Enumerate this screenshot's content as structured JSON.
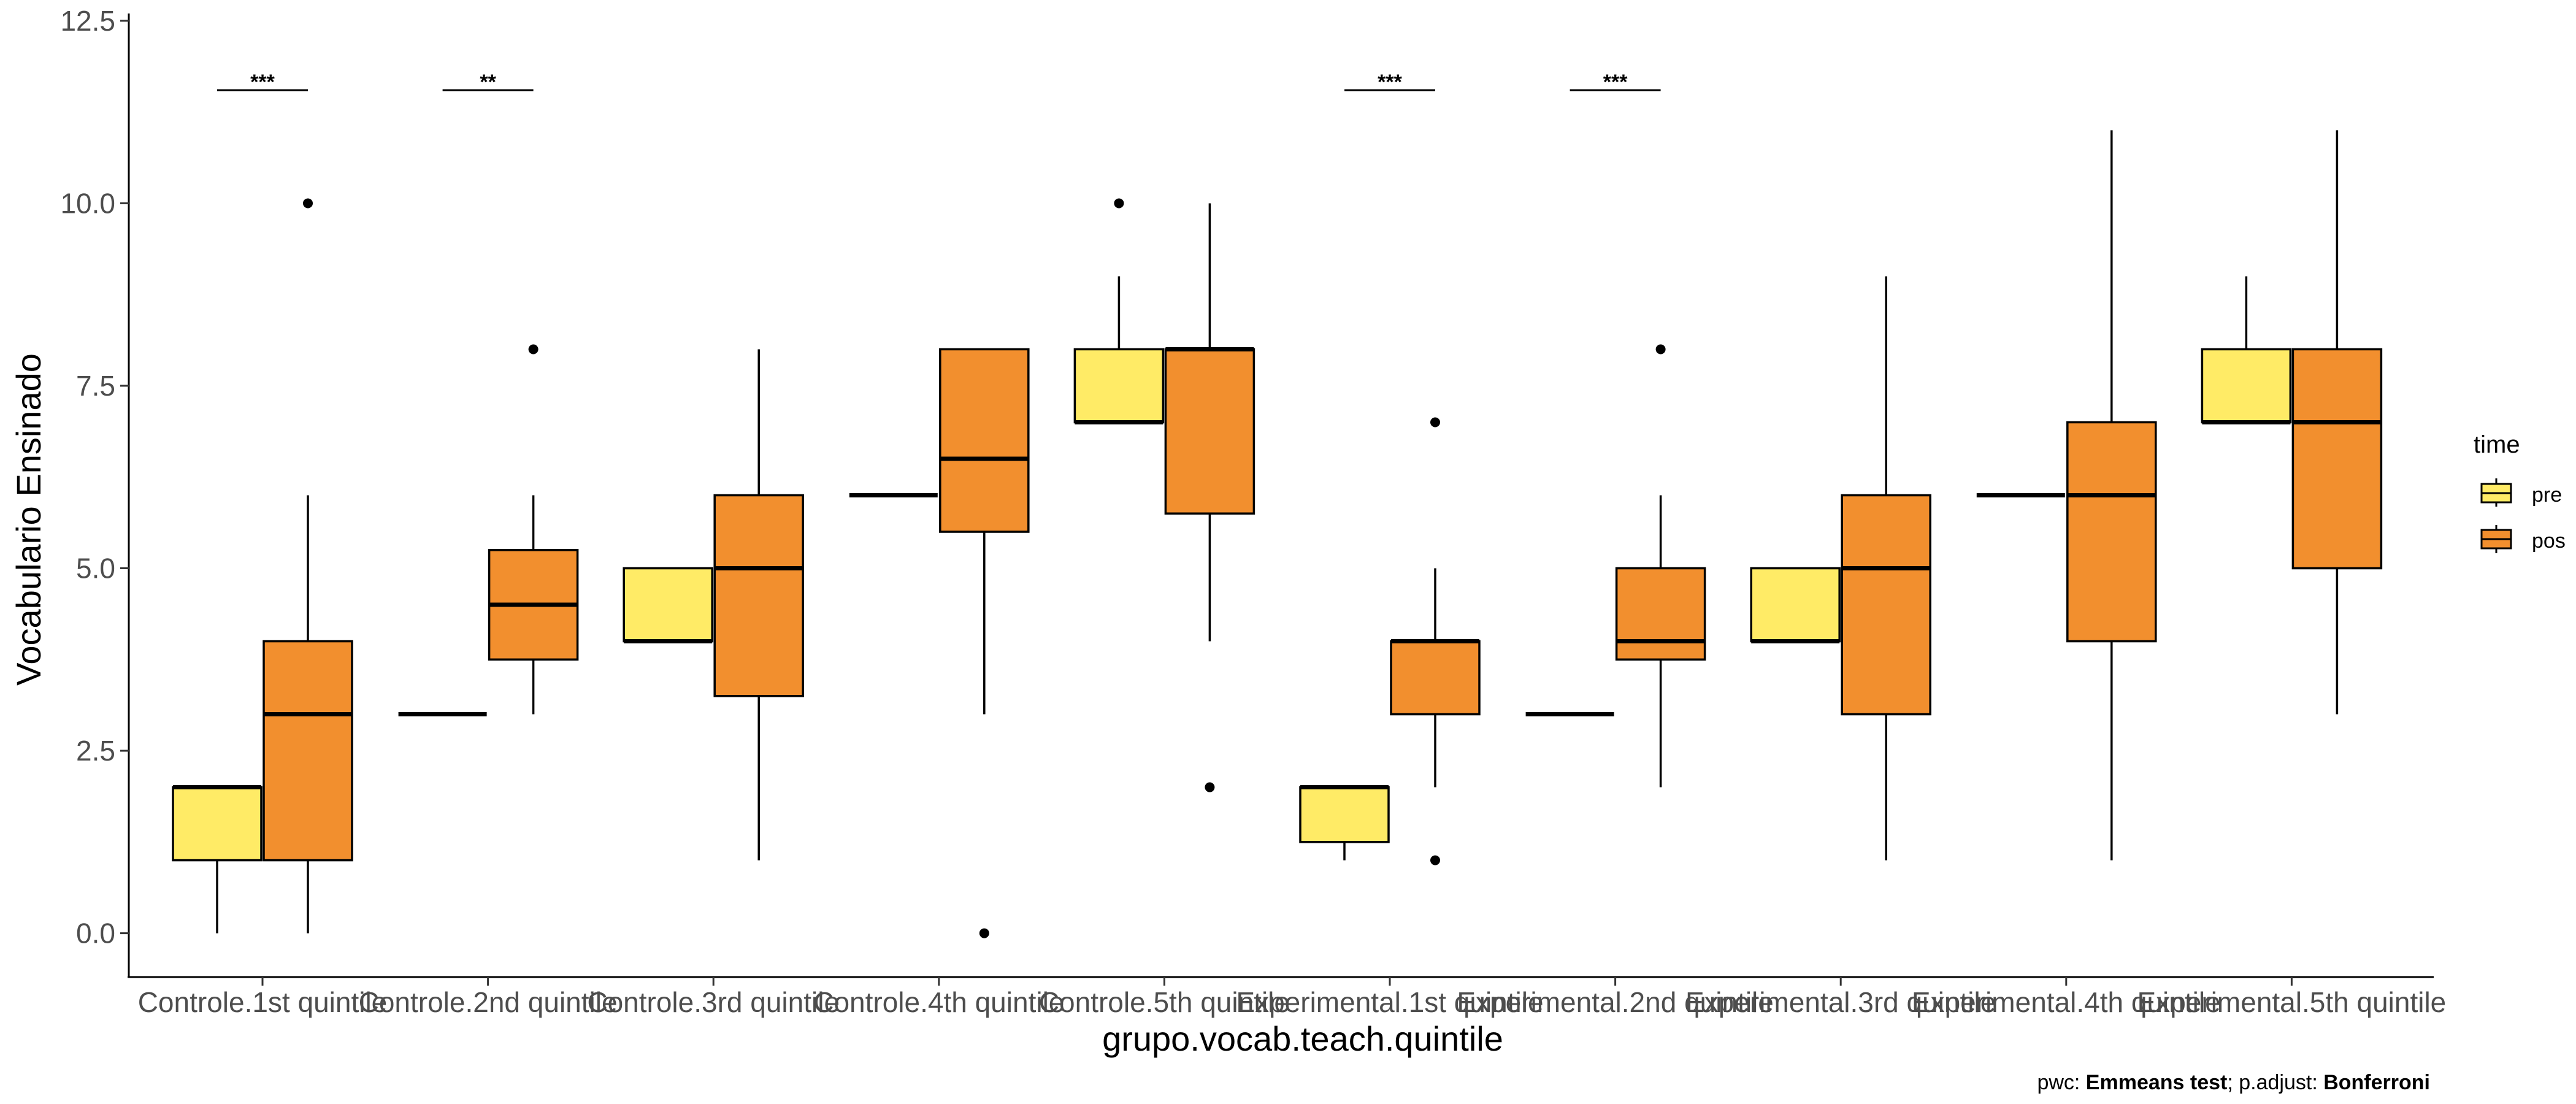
{
  "chart_data": {
    "type": "boxplot",
    "xlabel": "grupo.vocab.teach.quintile",
    "ylabel": "Vocabulario Ensinado",
    "ylim": [
      -0.6,
      12.6
    ],
    "yticks": [
      0.0,
      2.5,
      5.0,
      7.5,
      10.0,
      12.5
    ],
    "ytick_labels": [
      "0.0",
      "2.5",
      "5.0",
      "7.5",
      "10.0",
      "12.5"
    ],
    "grid": false,
    "categories": [
      "Controle.1st quintile",
      "Controle.2nd quintile",
      "Controle.3rd quintile",
      "Controle.4th quintile",
      "Controle.5th quintile",
      "Experimental.1st quintile",
      "Experimental.2nd quintile",
      "Experimental.3rd quintile",
      "Experimental.4th quintile",
      "Experimental.5th quintile"
    ],
    "legend": {
      "title": "time",
      "position": "right",
      "entries": [
        {
          "name": "pre",
          "color": "#FFEB66"
        },
        {
          "name": "pos",
          "color": "#F28F2E"
        }
      ]
    },
    "series": [
      {
        "name": "pre",
        "color": "#FFEB66",
        "boxes": [
          {
            "min": 0,
            "q1": 1,
            "median": 2,
            "q3": 2,
            "max": 2,
            "outliers": []
          },
          {
            "min": 3,
            "q1": 3,
            "median": 3,
            "q3": 3,
            "max": 3,
            "outliers": []
          },
          {
            "min": 4,
            "q1": 4,
            "median": 4,
            "q3": 5,
            "max": 5,
            "outliers": []
          },
          {
            "min": 6,
            "q1": 6,
            "median": 6,
            "q3": 6,
            "max": 6,
            "outliers": []
          },
          {
            "min": 7,
            "q1": 7,
            "median": 7,
            "q3": 8,
            "max": 9,
            "outliers": [
              10
            ]
          },
          {
            "min": 1,
            "q1": 1.25,
            "median": 2,
            "q3": 2,
            "max": 2,
            "outliers": []
          },
          {
            "min": 3,
            "q1": 3,
            "median": 3,
            "q3": 3,
            "max": 3,
            "outliers": []
          },
          {
            "min": 4,
            "q1": 4,
            "median": 4,
            "q3": 5,
            "max": 5,
            "outliers": []
          },
          {
            "min": 6,
            "q1": 6,
            "median": 6,
            "q3": 6,
            "max": 6,
            "outliers": []
          },
          {
            "min": 7,
            "q1": 7,
            "median": 7,
            "q3": 8,
            "max": 9,
            "outliers": []
          }
        ]
      },
      {
        "name": "pos",
        "color": "#F28F2E",
        "boxes": [
          {
            "min": 0,
            "q1": 1,
            "median": 3,
            "q3": 4,
            "max": 6,
            "outliers": [
              10
            ]
          },
          {
            "min": 3,
            "q1": 3.75,
            "median": 4.5,
            "q3": 5.25,
            "max": 6,
            "outliers": [
              8
            ]
          },
          {
            "min": 1,
            "q1": 3.25,
            "median": 5,
            "q3": 6,
            "max": 8,
            "outliers": []
          },
          {
            "min": 3,
            "q1": 5.5,
            "median": 6.5,
            "q3": 8,
            "max": 8,
            "outliers": [
              0
            ]
          },
          {
            "min": 4,
            "q1": 5.75,
            "median": 8,
            "q3": 8,
            "max": 10,
            "outliers": [
              2
            ]
          },
          {
            "min": 2,
            "q1": 3,
            "median": 4,
            "q3": 4,
            "max": 5,
            "outliers": [
              7,
              1
            ]
          },
          {
            "min": 2,
            "q1": 3.75,
            "median": 4,
            "q3": 5,
            "max": 6,
            "outliers": [
              8
            ]
          },
          {
            "min": 1,
            "q1": 3,
            "median": 5,
            "q3": 6,
            "max": 9,
            "outliers": []
          },
          {
            "min": 1,
            "q1": 4,
            "median": 6,
            "q3": 7,
            "max": 11,
            "outliers": []
          },
          {
            "min": 3,
            "q1": 5,
            "median": 7,
            "q3": 8,
            "max": 11,
            "outliers": []
          }
        ]
      }
    ],
    "annotations": [
      {
        "category_index": 0,
        "label": "***",
        "y": 11.55
      },
      {
        "category_index": 1,
        "label": "**",
        "y": 11.55
      },
      {
        "category_index": 5,
        "label": "***",
        "y": 11.55
      },
      {
        "category_index": 6,
        "label": "***",
        "y": 11.55
      }
    ],
    "caption": {
      "prefix": "pwc: ",
      "test": "Emmeans test",
      "middle": "; p.adjust: ",
      "method": "Bonferroni"
    }
  }
}
